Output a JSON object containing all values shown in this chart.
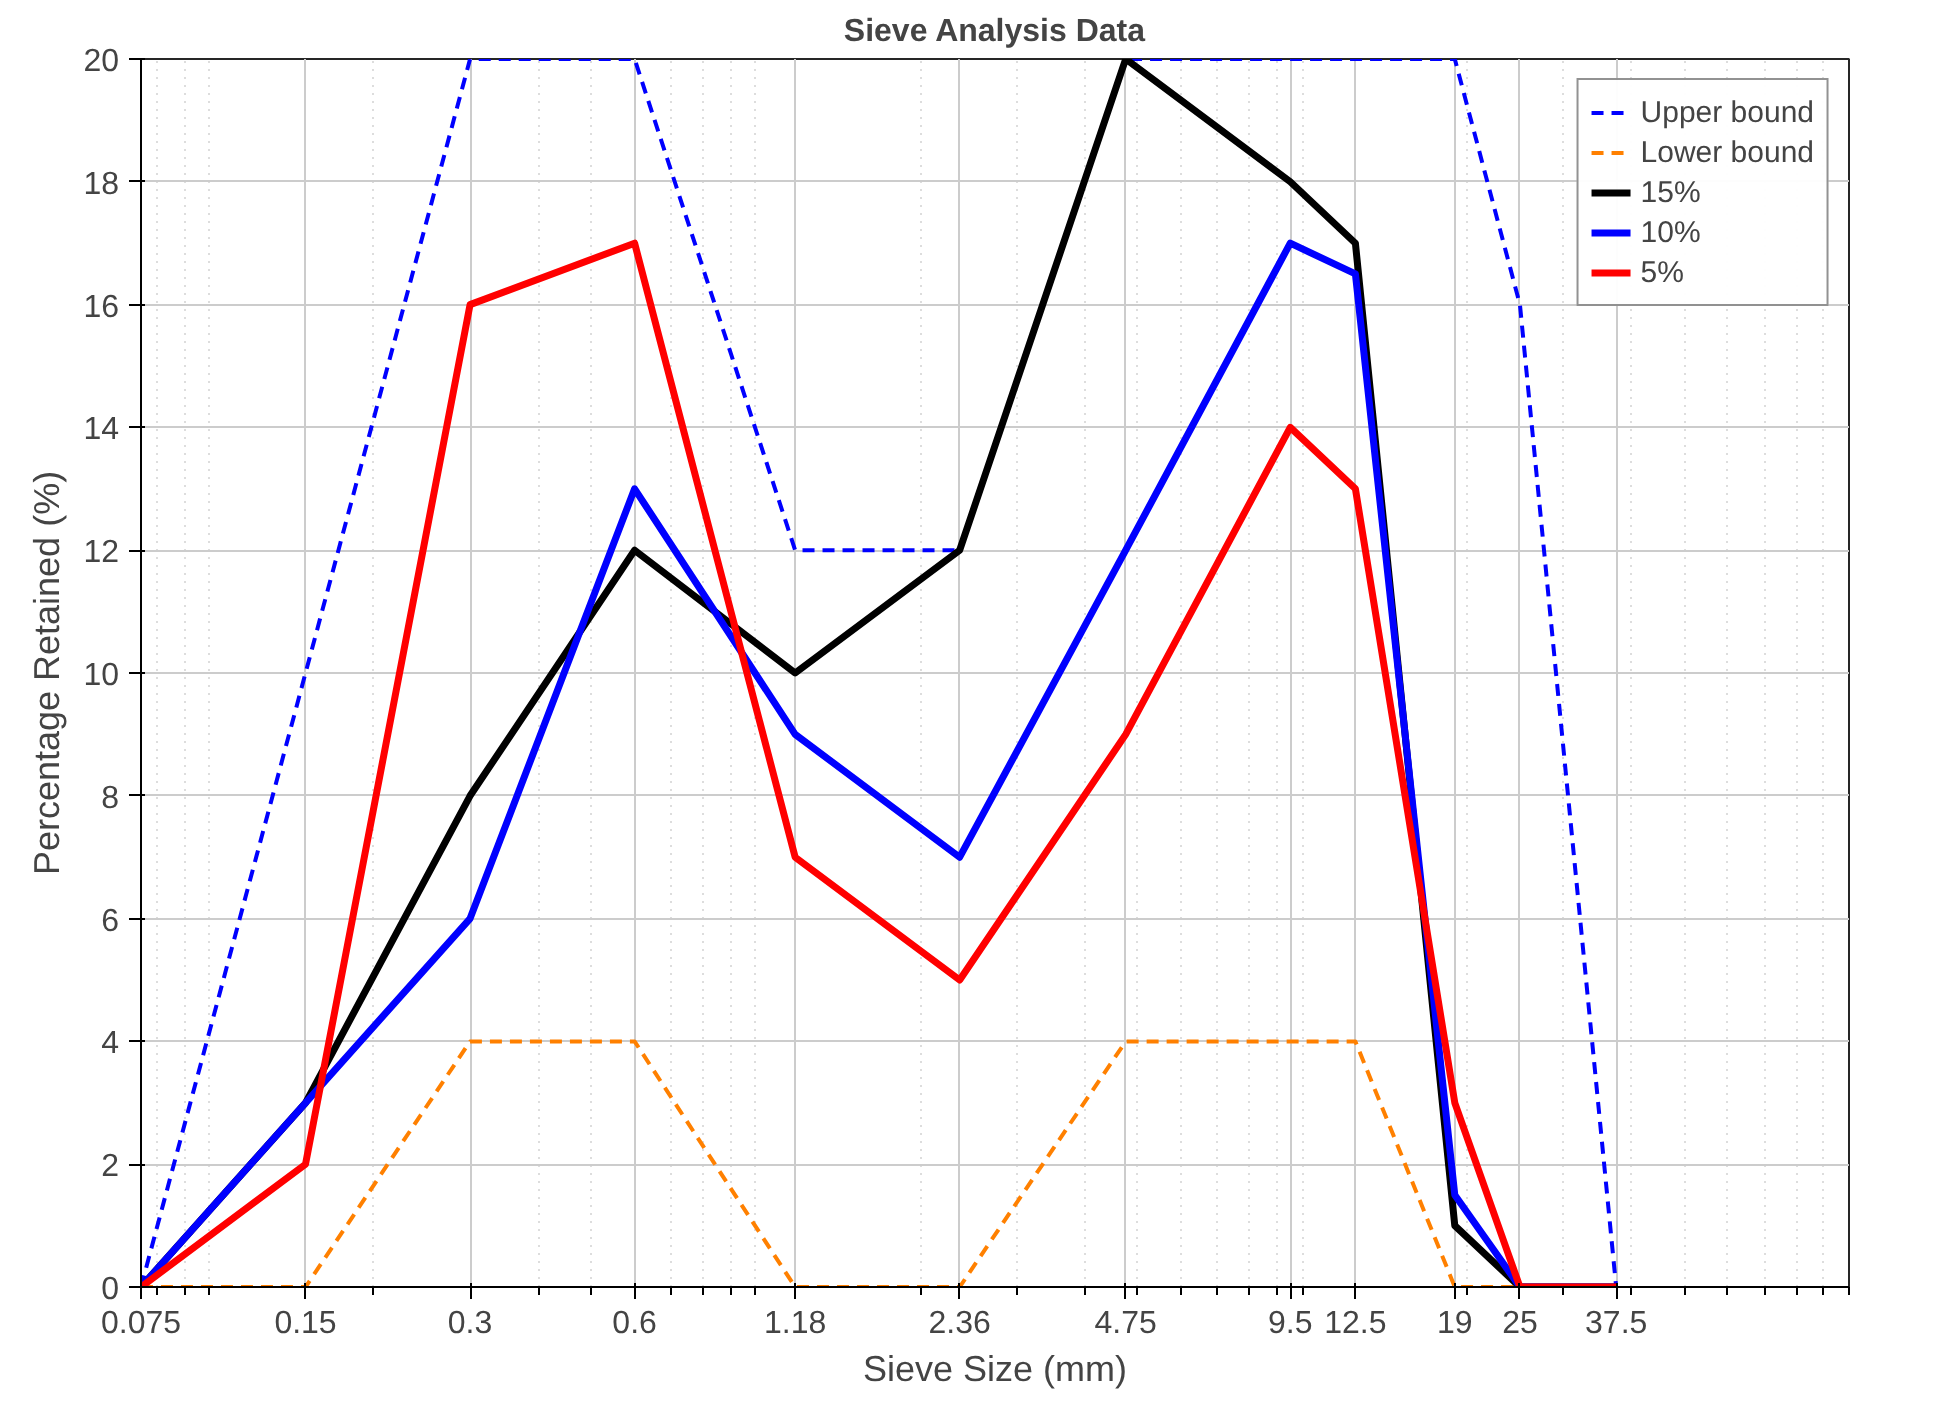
{
  "chart_data": {
    "type": "line",
    "title": "Sieve Analysis Data",
    "xlabel": "Sieve Size (mm)",
    "ylabel": "Percentage Retained (%)",
    "x": [
      0.075,
      0.15,
      0.3,
      0.6,
      1.18,
      2.36,
      4.75,
      9.5,
      12.5,
      19,
      25,
      37.5
    ],
    "series": [
      {
        "name": "Upper bound",
        "color": "#0000ff",
        "line_style": "dashed",
        "values": [
          0,
          10,
          20,
          20,
          12,
          12,
          20,
          20,
          20,
          20,
          16,
          0
        ]
      },
      {
        "name": "Lower bound",
        "color": "#ff8000",
        "line_style": "dashed",
        "values": [
          0,
          0,
          4,
          4,
          0,
          0,
          4,
          4,
          4,
          0,
          0,
          null
        ]
      },
      {
        "name": "15%",
        "color": "#000000",
        "line_style": "solid",
        "values": [
          0,
          3,
          8,
          12,
          10,
          12,
          20,
          18,
          17,
          1,
          0,
          0
        ]
      },
      {
        "name": "10%",
        "color": "#0000ff",
        "line_style": "solid",
        "values": [
          0,
          3,
          6,
          13,
          9,
          7,
          12,
          17,
          16.5,
          1.5,
          0,
          0
        ]
      },
      {
        "name": "5%",
        "color": "#ff0000",
        "line_style": "solid",
        "values": [
          0,
          2,
          16,
          17,
          7,
          5,
          9,
          14,
          13,
          3,
          0,
          0
        ]
      }
    ],
    "log": "x",
    "xlim": [
      0.075,
      100
    ],
    "xticks": [
      0.075,
      0.15,
      0.3,
      0.6,
      1.18,
      2.36,
      4.75,
      9.5,
      12.5,
      19,
      25,
      37.5
    ],
    "ylim": [
      0,
      20
    ],
    "yticks": [
      0,
      2,
      4,
      6,
      8,
      10,
      12,
      14,
      16,
      18,
      20
    ],
    "grid": true,
    "legend": "top right"
  }
}
